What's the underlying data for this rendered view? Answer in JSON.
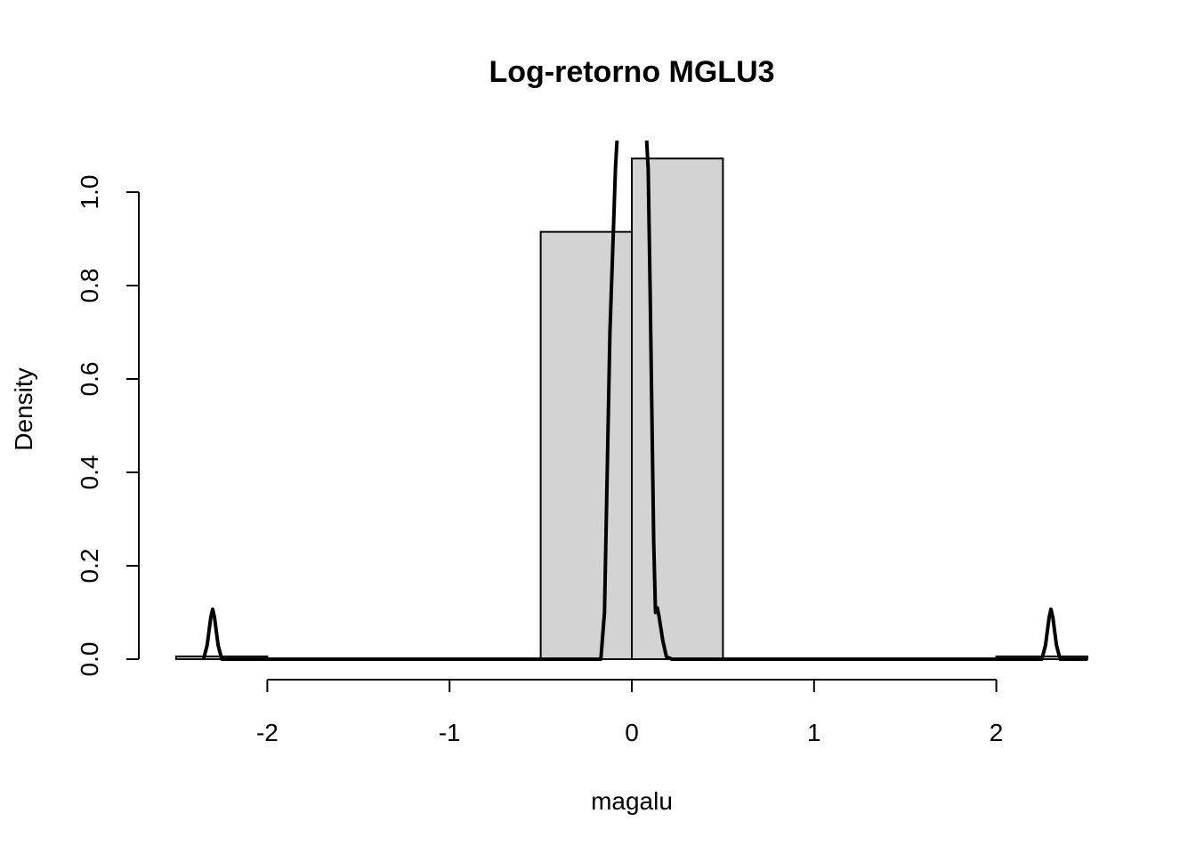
{
  "chart_data": {
    "type": "bar",
    "title": "Log-retorno MGLU3",
    "xlabel": "magalu",
    "ylabel": "Density",
    "xlim": [
      -2.5,
      2.5
    ],
    "ylim": [
      0,
      1.1
    ],
    "x_ticks": [
      -2,
      -1,
      0,
      1,
      2
    ],
    "y_ticks": [
      0.0,
      0.2,
      0.4,
      0.6,
      0.8,
      1.0
    ],
    "x_tick_labels": [
      "-2",
      "-1",
      "0",
      "1",
      "2"
    ],
    "y_tick_labels": [
      "0.0",
      "0.2",
      "0.4",
      "0.6",
      "0.8",
      "1.0"
    ],
    "grid": false,
    "histogram": {
      "bins": [
        {
          "x0": -2.5,
          "x1": -2.0,
          "density": 0.006
        },
        {
          "x0": -2.0,
          "x1": -1.5,
          "density": 0.0
        },
        {
          "x0": -1.5,
          "x1": -1.0,
          "density": 0.0
        },
        {
          "x0": -1.0,
          "x1": -0.5,
          "density": 0.0
        },
        {
          "x0": -0.5,
          "x1": 0.0,
          "density": 0.915
        },
        {
          "x0": 0.0,
          "x1": 0.5,
          "density": 1.072
        },
        {
          "x0": 0.5,
          "x1": 1.0,
          "density": 0.0
        },
        {
          "x0": 1.0,
          "x1": 1.5,
          "density": 0.0
        },
        {
          "x0": 1.5,
          "x1": 2.0,
          "density": 0.0
        },
        {
          "x0": 2.0,
          "x1": 2.5,
          "density": 0.006
        }
      ]
    },
    "series": [
      {
        "type": "line",
        "x": [
          -2.35,
          -2.33,
          -2.31,
          -2.3,
          -2.29,
          -2.27,
          -2.25,
          -2.0,
          -1.0,
          -0.5,
          -0.2,
          -0.17,
          -0.15,
          -0.12,
          -0.1,
          -0.09,
          -0.08,
          0.08,
          0.09,
          0.1,
          0.12,
          0.13,
          0.14,
          0.15,
          0.17,
          0.19,
          0.22,
          0.5,
          1.0,
          2.0,
          2.25,
          2.27,
          2.29,
          2.3,
          2.31,
          2.33,
          2.35,
          2.5
        ],
        "y": [
          0.0,
          0.03,
          0.09,
          0.107,
          0.09,
          0.03,
          0.0,
          0.0,
          0.0,
          0.0,
          0.0,
          0.0,
          0.1,
          0.7,
          0.93,
          1.05,
          1.12,
          1.12,
          1.05,
          0.8,
          0.25,
          0.1,
          0.11,
          0.09,
          0.04,
          0.005,
          0.0,
          0.0,
          0.0,
          0.0,
          0.0,
          0.03,
          0.09,
          0.107,
          0.09,
          0.03,
          0.0,
          0.0
        ]
      }
    ]
  }
}
